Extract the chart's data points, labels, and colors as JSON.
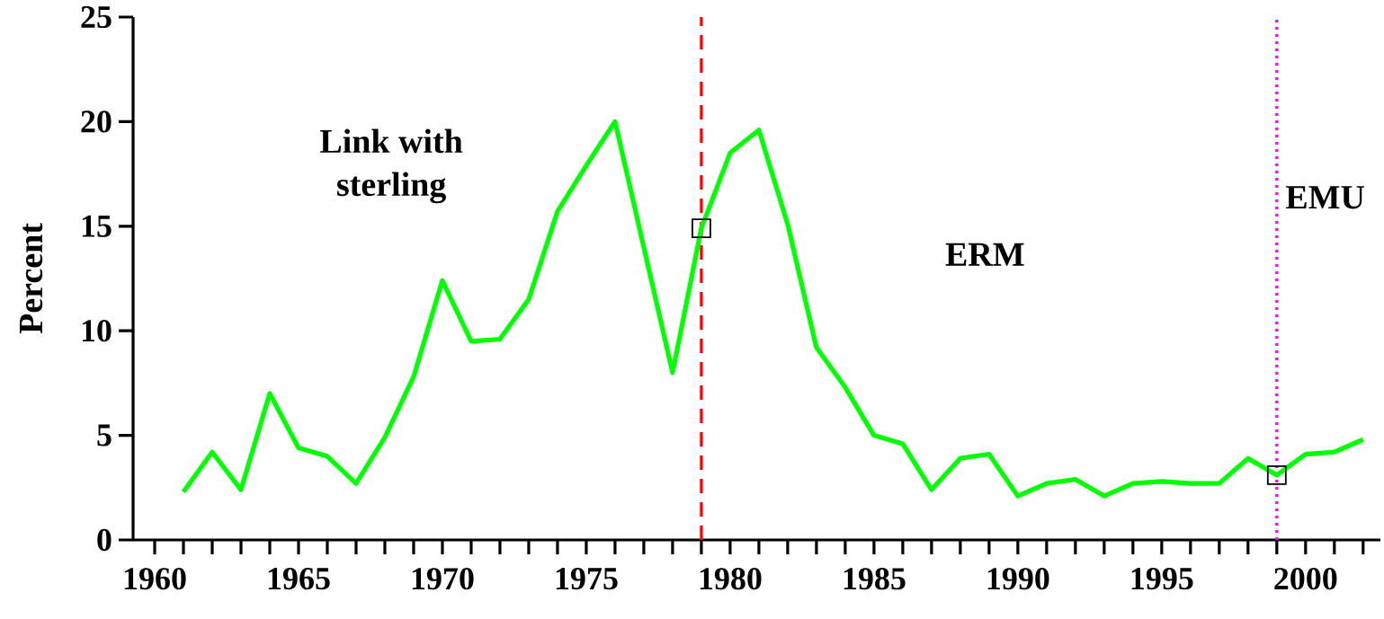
{
  "chart_data": {
    "type": "line",
    "ylabel": "Percent",
    "x": [
      1961,
      1962,
      1963,
      1964,
      1965,
      1966,
      1967,
      1968,
      1969,
      1970,
      1971,
      1972,
      1973,
      1974,
      1975,
      1976,
      1977,
      1978,
      1979,
      1980,
      1981,
      1982,
      1983,
      1984,
      1985,
      1986,
      1987,
      1988,
      1989,
      1990,
      1991,
      1992,
      1993,
      1994,
      1995,
      1996,
      1997,
      1998,
      1999,
      2000,
      2001,
      2002
    ],
    "series": [
      {
        "color": "#00ff00",
        "marker": "none",
        "values": [
          2.3,
          4.2,
          2.4,
          7.0,
          4.4,
          4.0,
          2.7,
          4.9,
          7.8,
          12.4,
          9.5,
          9.6,
          11.5,
          15.7,
          17.9,
          20.0,
          14.0,
          8.0,
          14.9,
          18.5,
          19.6,
          15.1,
          9.2,
          7.3,
          5.0,
          4.6,
          2.4,
          3.9,
          4.1,
          2.1,
          2.7,
          2.9,
          2.1,
          2.7,
          2.8,
          2.7,
          2.7,
          3.9,
          3.1,
          4.1,
          4.2,
          4.8
        ]
      },
      {
        "type": "scatter",
        "color": "#000000",
        "marker": "square",
        "x": [
          1979,
          1999
        ],
        "values": [
          14.9,
          3.1
        ]
      }
    ],
    "xlim": [
      1959.25,
      2002.6
    ],
    "ylim": [
      0,
      25
    ],
    "yticks": [
      0,
      5,
      10,
      15,
      20,
      25
    ],
    "xticks": [
      1960,
      {
        "value": 1961,
        "label": null
      },
      {
        "value": 1962,
        "label": null
      },
      {
        "value": 1963,
        "label": null
      },
      {
        "value": 1964,
        "label": null
      },
      1965,
      {
        "value": 1966,
        "label": null
      },
      {
        "value": 1967,
        "label": null
      },
      {
        "value": 1968,
        "label": null
      },
      {
        "value": 1969,
        "label": null
      },
      1970,
      {
        "value": 1971,
        "label": null
      },
      {
        "value": 1972,
        "label": null
      },
      {
        "value": 1973,
        "label": null
      },
      {
        "value": 1974,
        "label": null
      },
      1975,
      {
        "value": 1976,
        "label": null
      },
      {
        "value": 1977,
        "label": null
      },
      {
        "value": 1978,
        "label": null
      },
      {
        "value": 1979,
        "label": null
      },
      1980,
      {
        "value": 1981,
        "label": null
      },
      {
        "value": 1982,
        "label": null
      },
      {
        "value": 1983,
        "label": null
      },
      {
        "value": 1984,
        "label": null
      },
      1985,
      {
        "value": 1986,
        "label": null
      },
      {
        "value": 1987,
        "label": null
      },
      {
        "value": 1988,
        "label": null
      },
      {
        "value": 1989,
        "label": null
      },
      1990,
      {
        "value": 1991,
        "label": null
      },
      {
        "value": 1992,
        "label": null
      },
      {
        "value": 1993,
        "label": null
      },
      {
        "value": 1994,
        "label": null
      },
      1995,
      {
        "value": 1996,
        "label": null
      },
      {
        "value": 1997,
        "label": null
      },
      {
        "value": 1998,
        "label": null
      },
      {
        "value": 1999,
        "label": null
      },
      2000,
      {
        "value": 2001,
        "label": null
      },
      {
        "value": 2002,
        "label": null
      }
    ],
    "ref_lines": [
      {
        "axis": "x",
        "value": 1979,
        "color": "#ff0000",
        "line_style": "dashed"
      },
      {
        "axis": "x",
        "value": 1999,
        "color": "#ff00ff",
        "line_style": "dotted"
      }
    ],
    "annotations": [
      "Link with sterling",
      "ERM",
      "EMU"
    ]
  }
}
